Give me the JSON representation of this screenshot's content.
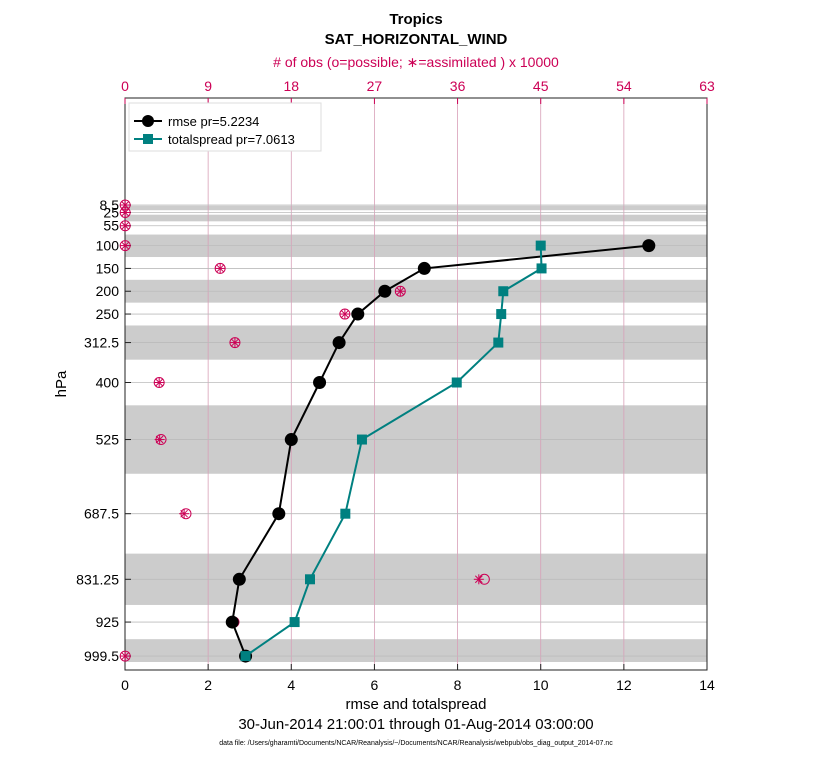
{
  "chart_data": {
    "type": "line",
    "title": "Tropics",
    "subtitle": "SAT_HORIZONTAL_WIND",
    "top_axis_label": "# of obs (o=possible; ∗=assimilated ) x 10000",
    "xlabel": "rmse and totalspread",
    "ylabel": "hPa",
    "date_range": "30-Jun-2014 21:00:01 through 01-Aug-2014 03:00:00",
    "data_file": "data file: /Users/gharamti/Documents/NCAR/Reanalysis/~/Documents/NCAR/Reanalysis/webpub/obs_diag_output_2014-07.nc",
    "xlim": [
      0,
      14
    ],
    "x_ticks": [
      0,
      2,
      4,
      6,
      8,
      10,
      12,
      14
    ],
    "top_xlim": [
      0,
      63
    ],
    "top_ticks": [
      0,
      9,
      18,
      27,
      36,
      45,
      54,
      63
    ],
    "levels": [
      8.5,
      25,
      55,
      100,
      150,
      200,
      250,
      312.5,
      400,
      525,
      687.5,
      831.25,
      925,
      999.5
    ],
    "level_labels": [
      "8.5",
      "25",
      "55",
      "100",
      "150",
      "200",
      "250",
      "312.5",
      "400",
      "525",
      "687.5",
      "831.25",
      "925",
      "999.5"
    ],
    "layer_edges": [
      0,
      10,
      20,
      30,
      45,
      75,
      125,
      175,
      225,
      275,
      350,
      450,
      600,
      775,
      887.5,
      962.5,
      1012.5
    ],
    "series": [
      {
        "name": "rmse",
        "legend": "rmse pr=5.2234",
        "color": "#000000",
        "levels": [
          100,
          150,
          200,
          250,
          312.5,
          400,
          525,
          687.5,
          831.25,
          925,
          999.5
        ],
        "values": [
          12.6,
          7.2,
          6.25,
          5.6,
          5.15,
          4.68,
          4.0,
          3.7,
          2.75,
          2.58,
          2.9
        ]
      },
      {
        "name": "totalspread",
        "legend": "totalspread pr=7.0613",
        "color": "#008080",
        "levels": [
          100,
          150,
          200,
          250,
          312.5,
          400,
          525,
          687.5,
          831.25,
          925,
          999.5
        ],
        "values": [
          10.0,
          10.02,
          9.1,
          9.05,
          8.98,
          7.98,
          5.7,
          5.3,
          4.45,
          4.08,
          2.9
        ]
      }
    ],
    "obs_counts": {
      "color": "#cc0055",
      "levels": [
        8.5,
        25,
        55,
        100,
        150,
        200,
        250,
        312.5,
        400,
        525,
        687.5,
        831.25,
        925,
        999.5
      ],
      "possible": [
        0.02,
        0.02,
        0.02,
        0.02,
        10.3,
        29.8,
        23.8,
        11.9,
        3.7,
        3.9,
        6.6,
        38.9,
        11.8,
        0.02
      ],
      "assimilated": [
        0.02,
        0.02,
        0.02,
        0.02,
        10.3,
        29.8,
        23.8,
        11.9,
        3.7,
        3.75,
        6.4,
        38.3,
        11.6,
        0.02
      ]
    }
  }
}
